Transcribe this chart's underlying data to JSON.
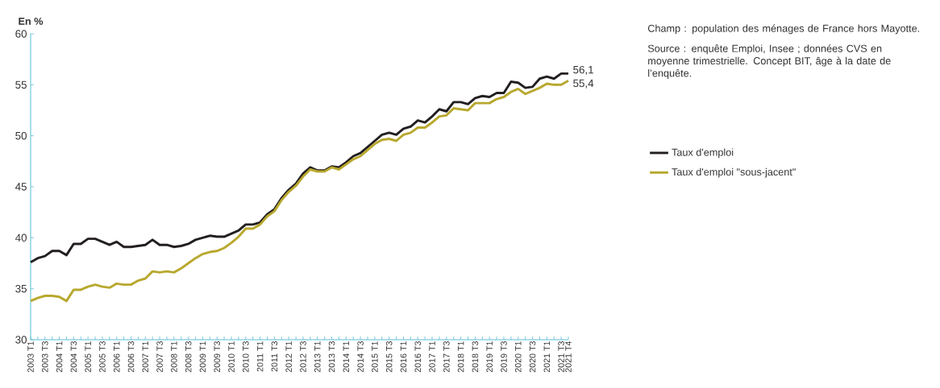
{
  "chart_data": {
    "type": "line",
    "ylabel": "En %",
    "categories": [
      "2003 T1",
      null,
      "2003 T3",
      null,
      "2004 T1",
      null,
      "2004 T3",
      null,
      "2005 T1",
      null,
      "2005 T3",
      null,
      "2006 T1",
      null,
      "2006 T3",
      null,
      "2007 T1",
      null,
      "2007 T3",
      null,
      "2008 T1",
      null,
      "2008 T3",
      null,
      "2009 T1",
      null,
      "2009 T3",
      null,
      "2010 T1",
      null,
      "2010 T3",
      null,
      "2011 T1",
      null,
      "2011 T3",
      null,
      "2012 T1",
      null,
      "2012 T3",
      null,
      "2013 T1",
      null,
      "2013 T3",
      null,
      "2014 T1",
      null,
      "2014 T3",
      null,
      "2015 T1",
      null,
      "2015 T3",
      null,
      "2016 T1",
      null,
      "2016 T3",
      null,
      "2017 T1",
      null,
      "2017 T3",
      null,
      "2018 T1",
      null,
      "2018 T3",
      null,
      "2019 T1",
      null,
      "2019 T3",
      null,
      "2020 T1",
      null,
      "2020 T3",
      null,
      "2021 T1",
      null,
      "2021 T3",
      "2021 T4"
    ],
    "series": [
      {
        "name": "Taux d'emploi",
        "color": "#231f20",
        "values": [
          37.6,
          38.0,
          38.2,
          38.7,
          38.7,
          38.3,
          39.4,
          39.4,
          39.9,
          39.9,
          39.6,
          39.3,
          39.6,
          39.1,
          39.1,
          39.2,
          39.3,
          39.8,
          39.3,
          39.3,
          39.1,
          39.2,
          39.4,
          39.8,
          40.0,
          40.2,
          40.1,
          40.1,
          40.4,
          40.7,
          41.3,
          41.3,
          41.5,
          42.3,
          42.8,
          43.9,
          44.7,
          45.3,
          46.3,
          46.9,
          46.6,
          46.6,
          47.0,
          46.9,
          47.4,
          48.0,
          48.3,
          48.9,
          49.5,
          50.1,
          50.3,
          50.1,
          50.7,
          50.9,
          51.5,
          51.3,
          51.9,
          52.6,
          52.4,
          53.3,
          53.3,
          53.1,
          53.7,
          53.9,
          53.8,
          54.2,
          54.2,
          55.3,
          55.2,
          54.7,
          54.8,
          55.6,
          55.8,
          55.6,
          56.1,
          56.1
        ],
        "value_labels": [
          null,
          null,
          null,
          null,
          null,
          null,
          null,
          null,
          null,
          null,
          null,
          null,
          null,
          null,
          null,
          null,
          null,
          null,
          null,
          null,
          null,
          null,
          null,
          null,
          null,
          null,
          null,
          null,
          null,
          null,
          null,
          null,
          null,
          null,
          null,
          null,
          null,
          null,
          null,
          null,
          null,
          null,
          null,
          null,
          null,
          null,
          null,
          null,
          null,
          null,
          null,
          null,
          null,
          null,
          null,
          null,
          null,
          null,
          null,
          null,
          null,
          null,
          null,
          null,
          null,
          null,
          null,
          null,
          null,
          null,
          null,
          null,
          null,
          null,
          null,
          "56,1"
        ]
      },
      {
        "name": "Taux d'emploi \"sous-jacent\"",
        "color": "#b8a82e",
        "values": [
          33.8,
          34.1,
          34.3,
          34.3,
          34.2,
          33.8,
          34.9,
          34.9,
          35.2,
          35.4,
          35.2,
          35.1,
          35.5,
          35.4,
          35.4,
          35.8,
          36.0,
          36.7,
          36.6,
          36.7,
          36.6,
          37.0,
          37.5,
          38.0,
          38.4,
          38.6,
          38.7,
          39.0,
          39.5,
          40.1,
          40.9,
          40.9,
          41.3,
          42.1,
          42.6,
          43.7,
          44.5,
          45.1,
          46.0,
          46.7,
          46.5,
          46.5,
          46.9,
          46.7,
          47.2,
          47.7,
          48.0,
          48.6,
          49.2,
          49.6,
          49.7,
          49.5,
          50.1,
          50.3,
          50.8,
          50.8,
          51.3,
          51.9,
          52.0,
          52.7,
          52.6,
          52.5,
          53.2,
          53.2,
          53.2,
          53.6,
          53.8,
          54.3,
          54.6,
          54.1,
          54.4,
          54.7,
          55.1,
          55.0,
          55.0,
          55.4
        ],
        "value_labels": [
          null,
          null,
          null,
          null,
          null,
          null,
          null,
          null,
          null,
          null,
          null,
          null,
          null,
          null,
          null,
          null,
          null,
          null,
          null,
          null,
          null,
          null,
          null,
          null,
          null,
          null,
          null,
          null,
          null,
          null,
          null,
          null,
          null,
          null,
          null,
          null,
          null,
          null,
          null,
          null,
          null,
          null,
          null,
          null,
          null,
          null,
          null,
          null,
          null,
          null,
          null,
          null,
          null,
          null,
          null,
          null,
          null,
          null,
          null,
          null,
          null,
          null,
          null,
          null,
          null,
          null,
          null,
          null,
          null,
          null,
          null,
          null,
          null,
          null,
          null,
          "55,4"
        ]
      }
    ],
    "ylim": [
      30,
      60
    ],
    "yticks": [
      30,
      35,
      40,
      45,
      50,
      55,
      60
    ],
    "grid": false,
    "legend": "right",
    "annotations": [
      "Champ : population des ménages de France hors Mayotte.",
      "Source : enquête Emploi, Insee ; données CVS en moyenne trimestrielle. Concept BIT, âge à la date de l’enquête."
    ]
  }
}
